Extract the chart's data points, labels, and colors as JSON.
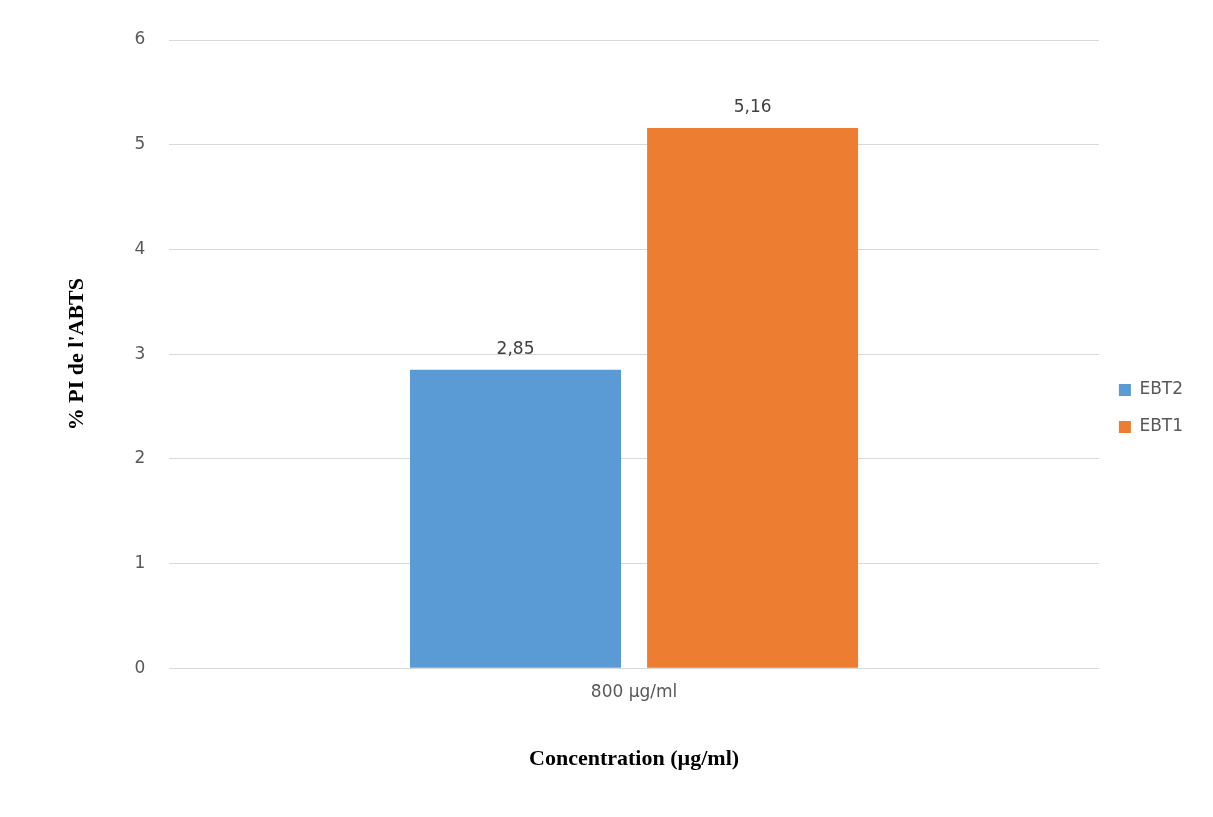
{
  "chart_data": {
    "type": "bar",
    "xlabel": "Concentration (µg/ml)",
    "ylabel": "% PI de l'ABTS",
    "categories": [
      "800 µg/ml"
    ],
    "series": [
      {
        "name": "EBT2",
        "color": "#5b9bd5",
        "values": [
          2.85
        ],
        "value_labels": [
          "2,85"
        ]
      },
      {
        "name": "EBT1",
        "color": "#ed7d31",
        "values": [
          5.16
        ],
        "value_labels": [
          "5,16"
        ]
      }
    ],
    "ylim": [
      0,
      6
    ],
    "yticks": [
      0,
      1,
      2,
      3,
      4,
      5,
      6
    ],
    "grid": "y",
    "legend": "right"
  }
}
